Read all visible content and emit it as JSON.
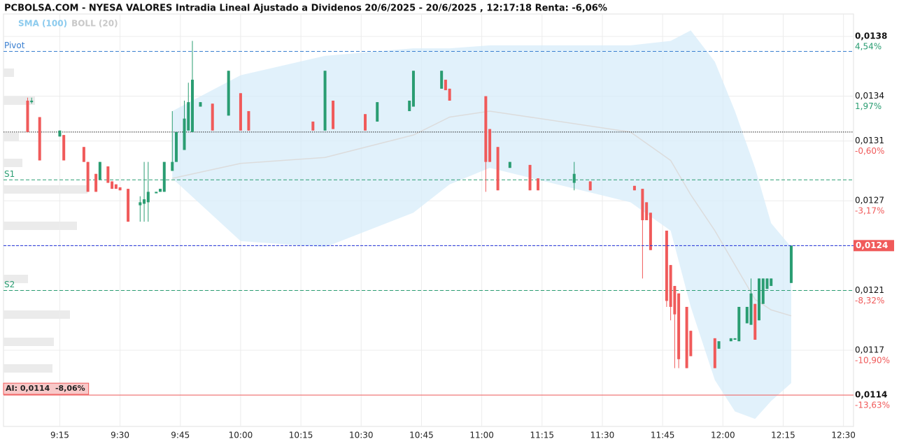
{
  "chart_data": {
    "type": "candlestick",
    "title": "PCBOLSA.COM - NYESA VALORES Intradia Lineal Ajustado a Dividenos 20/6/2025 - 20/6/2025 , 12:17:18 Renta: -6,06%",
    "indicators": [
      {
        "name": "SMA (100)",
        "color": "#8ccbee"
      },
      {
        "name": "BOLL (20)",
        "color": "#c8c8c8"
      }
    ],
    "up_color": "#2a9d72",
    "down_color": "#f05a5a",
    "xlim": [
      541,
      752.5
    ],
    "xticks": [
      {
        "value": 555,
        "label": "9:15"
      },
      {
        "value": 570,
        "label": "9:30"
      },
      {
        "value": 585,
        "label": "9:45"
      },
      {
        "value": 600,
        "label": "10:00"
      },
      {
        "value": 615,
        "label": "10:15"
      },
      {
        "value": 630,
        "label": "10:30"
      },
      {
        "value": 645,
        "label": "10:45"
      },
      {
        "value": 660,
        "label": "11:00"
      },
      {
        "value": 675,
        "label": "11:15"
      },
      {
        "value": 690,
        "label": "11:30"
      },
      {
        "value": 705,
        "label": "11:45"
      },
      {
        "value": 720,
        "label": "12:00"
      },
      {
        "value": 735,
        "label": "12:15"
      },
      {
        "value": 750,
        "label": "12:30"
      }
    ],
    "ylim": [
      0.01119,
      0.01395
    ],
    "yticks": [
      {
        "value": 0.0138,
        "label": "0,0138"
      },
      {
        "value": 0.0134,
        "label": "0,0134"
      },
      {
        "value": 0.0131,
        "label": "0,0131"
      },
      {
        "value": 0.0127,
        "label": "0,0127"
      },
      {
        "value": 0.0124,
        "label": "0,0124"
      },
      {
        "value": 0.0121,
        "label": "0,0121"
      },
      {
        "value": 0.0117,
        "label": "0,0117"
      },
      {
        "value": 0.0114,
        "label": "0,0114"
      }
    ],
    "ytick_changes": [
      "4,54%",
      "1,97%",
      "-0,60%",
      "-3,17%",
      null,
      "-8,32%",
      "-10,90%",
      "-13,63%"
    ],
    "grid": true,
    "levels": [
      {
        "name": "Pivot",
        "value": 0.0137,
        "color": "#3a7fd0"
      },
      {
        "name": "S1",
        "value": 0.01284,
        "color": "#2a9d72"
      },
      {
        "name": "S2",
        "value": 0.0121,
        "color": "#2a9d72"
      }
    ],
    "reference": 0.01316,
    "last_price": {
      "value": 0.0124,
      "label": "0,0124",
      "color": "#1f2fd8"
    },
    "alert": {
      "value": 0.0114,
      "label": "AI: 0,0114  -8,06%",
      "color": "#f05a5a"
    },
    "bollinger": {
      "x": [
        583,
        600,
        621,
        643,
        652,
        662,
        697,
        707,
        712,
        718,
        723,
        728,
        732,
        737
      ],
      "upper": [
        0.0133,
        0.01354,
        0.01367,
        0.01372,
        0.01372,
        0.01374,
        0.01374,
        0.01377,
        0.01384,
        0.01363,
        0.0133,
        0.01292,
        0.01255,
        0.01239
      ],
      "middle": [
        0.01285,
        0.01295,
        0.01299,
        0.01314,
        0.01326,
        0.0133,
        0.01316,
        0.01297,
        0.01274,
        0.0125,
        0.01227,
        0.01204,
        0.01197,
        0.01193
      ],
      "lower": [
        0.01285,
        0.01243,
        0.01239,
        0.01262,
        0.01281,
        0.01292,
        0.01269,
        0.0125,
        0.01199,
        0.0115,
        0.01129,
        0.01124,
        0.01136,
        0.01148
      ]
    },
    "candles": [
      {
        "t": 547,
        "o": 0.01337,
        "h": 0.01339,
        "l": 0.01316,
        "c": 0.01316
      },
      {
        "t": 548,
        "o": 0.01336,
        "h": 0.01339,
        "l": 0.01335,
        "c": 0.01337
      },
      {
        "t": 550,
        "o": 0.01326,
        "h": 0.01326,
        "l": 0.01297,
        "c": 0.01297
      },
      {
        "t": 555,
        "o": 0.01313,
        "h": 0.01317,
        "l": 0.01313,
        "c": 0.01317
      },
      {
        "t": 556,
        "o": 0.01314,
        "h": 0.01314,
        "l": 0.01297,
        "c": 0.01297
      },
      {
        "t": 561,
        "o": 0.01306,
        "h": 0.01306,
        "l": 0.01296,
        "c": 0.01296
      },
      {
        "t": 562,
        "o": 0.01296,
        "h": 0.01296,
        "l": 0.01276,
        "c": 0.01276
      },
      {
        "t": 564,
        "o": 0.01288,
        "h": 0.01288,
        "l": 0.01276,
        "c": 0.01276
      },
      {
        "t": 565,
        "o": 0.01284,
        "h": 0.01296,
        "l": 0.01284,
        "c": 0.01296
      },
      {
        "t": 567,
        "o": 0.01293,
        "h": 0.01293,
        "l": 0.01282,
        "c": 0.01282
      },
      {
        "t": 568,
        "o": 0.01283,
        "h": 0.01283,
        "l": 0.01278,
        "c": 0.01278
      },
      {
        "t": 569,
        "o": 0.01281,
        "h": 0.01281,
        "l": 0.01278,
        "c": 0.01278
      },
      {
        "t": 570,
        "o": 0.01279,
        "h": 0.01279,
        "l": 0.01277,
        "c": 0.01277
      },
      {
        "t": 572,
        "o": 0.01278,
        "h": 0.01278,
        "l": 0.01256,
        "c": 0.01256
      },
      {
        "t": 575,
        "o": 0.01267,
        "h": 0.01273,
        "l": 0.01256,
        "c": 0.01269
      },
      {
        "t": 576,
        "o": 0.01268,
        "h": 0.01296,
        "l": 0.01256,
        "c": 0.01271
      },
      {
        "t": 577,
        "o": 0.01269,
        "h": 0.01296,
        "l": 0.01256,
        "c": 0.01276
      },
      {
        "t": 579,
        "o": 0.01275,
        "h": 0.01276,
        "l": 0.01275,
        "c": 0.01276
      },
      {
        "t": 580,
        "o": 0.01276,
        "h": 0.01278,
        "l": 0.01276,
        "c": 0.01278
      },
      {
        "t": 581,
        "o": 0.01276,
        "h": 0.01296,
        "l": 0.01276,
        "c": 0.01296
      },
      {
        "t": 583,
        "o": 0.0129,
        "h": 0.0133,
        "l": 0.0129,
        "c": 0.01296
      },
      {
        "t": 584,
        "o": 0.01296,
        "h": 0.01316,
        "l": 0.01296,
        "c": 0.01316
      },
      {
        "t": 586,
        "o": 0.01304,
        "h": 0.01337,
        "l": 0.01304,
        "c": 0.01325
      },
      {
        "t": 587,
        "o": 0.01317,
        "h": 0.01349,
        "l": 0.01317,
        "c": 0.01336
      },
      {
        "t": 588,
        "o": 0.01316,
        "h": 0.01377,
        "l": 0.01316,
        "c": 0.01351
      },
      {
        "t": 590,
        "o": 0.01333,
        "h": 0.01336,
        "l": 0.01333,
        "c": 0.01336
      },
      {
        "t": 593,
        "o": 0.01335,
        "h": 0.01335,
        "l": 0.01317,
        "c": 0.01317
      },
      {
        "t": 597,
        "o": 0.01327,
        "h": 0.01357,
        "l": 0.01327,
        "c": 0.01357
      },
      {
        "t": 600,
        "o": 0.01342,
        "h": 0.01342,
        "l": 0.01317,
        "c": 0.01317
      },
      {
        "t": 602,
        "o": 0.0133,
        "h": 0.0133,
        "l": 0.01317,
        "c": 0.01317
      },
      {
        "t": 618,
        "o": 0.01323,
        "h": 0.01323,
        "l": 0.01317,
        "c": 0.01317
      },
      {
        "t": 621,
        "o": 0.01317,
        "h": 0.01357,
        "l": 0.01317,
        "c": 0.01357
      },
      {
        "t": 623,
        "o": 0.01337,
        "h": 0.01337,
        "l": 0.01318,
        "c": 0.01318
      },
      {
        "t": 631,
        "o": 0.01328,
        "h": 0.01328,
        "l": 0.01317,
        "c": 0.01317
      },
      {
        "t": 634,
        "o": 0.01323,
        "h": 0.01336,
        "l": 0.01323,
        "c": 0.01336
      },
      {
        "t": 642,
        "o": 0.0133,
        "h": 0.01337,
        "l": 0.0133,
        "c": 0.01337
      },
      {
        "t": 643,
        "o": 0.01333,
        "h": 0.01357,
        "l": 0.01333,
        "c": 0.01357
      },
      {
        "t": 650,
        "o": 0.01345,
        "h": 0.01357,
        "l": 0.01345,
        "c": 0.01357
      },
      {
        "t": 651,
        "o": 0.01351,
        "h": 0.01351,
        "l": 0.01344,
        "c": 0.01344
      },
      {
        "t": 652,
        "o": 0.01345,
        "h": 0.01345,
        "l": 0.01337,
        "c": 0.01337
      },
      {
        "t": 661,
        "o": 0.0134,
        "h": 0.0134,
        "l": 0.01276,
        "c": 0.01296
      },
      {
        "t": 662,
        "o": 0.01318,
        "h": 0.01318,
        "l": 0.01296,
        "c": 0.01296
      },
      {
        "t": 664,
        "o": 0.01306,
        "h": 0.01306,
        "l": 0.01277,
        "c": 0.01277
      },
      {
        "t": 667,
        "o": 0.01292,
        "h": 0.01296,
        "l": 0.01292,
        "c": 0.01296
      },
      {
        "t": 672,
        "o": 0.01294,
        "h": 0.01294,
        "l": 0.01277,
        "c": 0.01277
      },
      {
        "t": 674,
        "o": 0.01285,
        "h": 0.01285,
        "l": 0.01277,
        "c": 0.01277
      },
      {
        "t": 683,
        "o": 0.01282,
        "h": 0.01296,
        "l": 0.01277,
        "c": 0.01288
      },
      {
        "t": 687,
        "o": 0.01283,
        "h": 0.01283,
        "l": 0.01277,
        "c": 0.01277
      },
      {
        "t": 698,
        "o": 0.0128,
        "h": 0.0128,
        "l": 0.01277,
        "c": 0.01277
      },
      {
        "t": 700,
        "o": 0.01278,
        "h": 0.01278,
        "l": 0.01218,
        "c": 0.01257
      },
      {
        "t": 701,
        "o": 0.01269,
        "h": 0.01269,
        "l": 0.01257,
        "c": 0.01257
      },
      {
        "t": 702,
        "o": 0.01262,
        "h": 0.01262,
        "l": 0.01237,
        "c": 0.01237
      },
      {
        "t": 706,
        "o": 0.0125,
        "h": 0.0125,
        "l": 0.01199,
        "c": 0.01203
      },
      {
        "t": 707,
        "o": 0.01227,
        "h": 0.01227,
        "l": 0.0119,
        "c": 0.01199
      },
      {
        "t": 708,
        "o": 0.01213,
        "h": 0.01213,
        "l": 0.01158,
        "c": 0.01194
      },
      {
        "t": 709,
        "o": 0.01208,
        "h": 0.01208,
        "l": 0.01158,
        "c": 0.01164
      },
      {
        "t": 711,
        "o": 0.01199,
        "h": 0.01199,
        "l": 0.01158,
        "c": 0.01158
      },
      {
        "t": 712,
        "o": 0.01183,
        "h": 0.01183,
        "l": 0.01166,
        "c": 0.01166
      },
      {
        "t": 718,
        "o": 0.01178,
        "h": 0.01178,
        "l": 0.01158,
        "c": 0.01158
      },
      {
        "t": 719,
        "o": 0.01171,
        "h": 0.01176,
        "l": 0.01171,
        "c": 0.01176
      },
      {
        "t": 722,
        "o": 0.01176,
        "h": 0.01178,
        "l": 0.01176,
        "c": 0.01178
      },
      {
        "t": 723,
        "o": 0.01177,
        "h": 0.01178,
        "l": 0.01177,
        "c": 0.01178
      },
      {
        "t": 724,
        "o": 0.01176,
        "h": 0.01199,
        "l": 0.01176,
        "c": 0.01199
      },
      {
        "t": 726,
        "o": 0.01188,
        "h": 0.01199,
        "l": 0.01188,
        "c": 0.01199
      },
      {
        "t": 727,
        "o": 0.01187,
        "h": 0.01218,
        "l": 0.01187,
        "c": 0.01208
      },
      {
        "t": 728,
        "o": 0.01201,
        "h": 0.01201,
        "l": 0.01177,
        "c": 0.01177
      },
      {
        "t": 729,
        "o": 0.0119,
        "h": 0.01218,
        "l": 0.0119,
        "c": 0.01218
      },
      {
        "t": 730,
        "o": 0.01201,
        "h": 0.01218,
        "l": 0.01201,
        "c": 0.01218
      },
      {
        "t": 731,
        "o": 0.01211,
        "h": 0.01218,
        "l": 0.01211,
        "c": 0.01218
      },
      {
        "t": 732,
        "o": 0.01213,
        "h": 0.01218,
        "l": 0.01213,
        "c": 0.01218
      },
      {
        "t": 737,
        "o": 0.01215,
        "h": 0.0124,
        "l": 0.01215,
        "c": 0.0124
      }
    ]
  }
}
